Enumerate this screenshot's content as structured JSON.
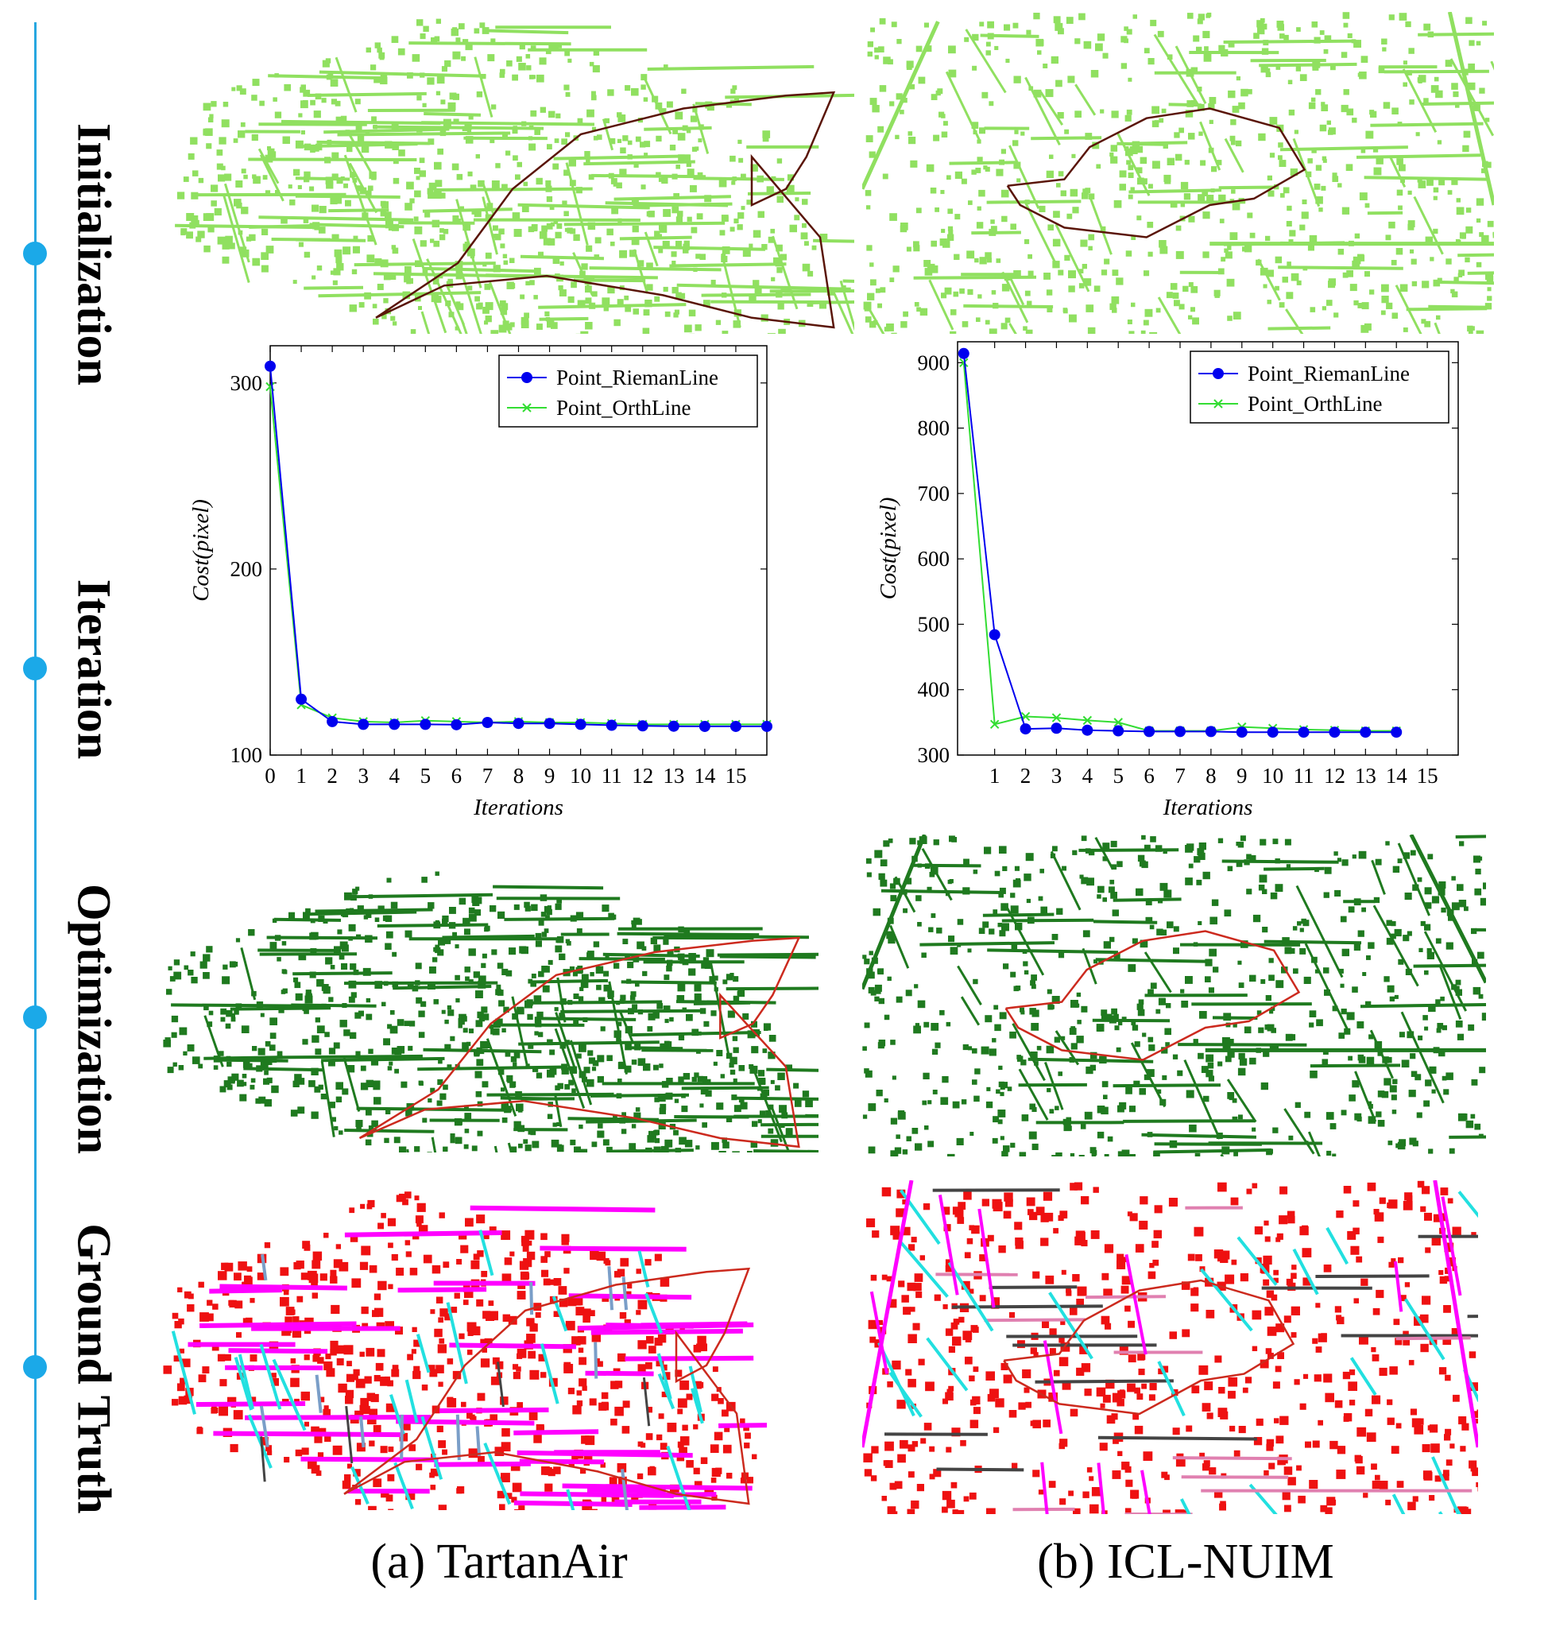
{
  "row_labels": {
    "initialization": "Initialization",
    "iteration": "Iteration",
    "optimization": "Optimization",
    "ground_truth": "Ground Truth"
  },
  "captions": {
    "a": "(a) TartanAir",
    "b": "(b) ICL-NUIM"
  },
  "colors": {
    "timeline": "#27a7e0",
    "init_map": "#90e060",
    "opt_map": "#1f7a1f",
    "gt_points": "#ee1111",
    "gt_lines_magenta": "#ff00ff",
    "gt_lines_cyan": "#22e0e0",
    "gt_lines_gray": "#444444",
    "gt_lines_steel": "#7a9ec8",
    "gt_lines_pink": "#e080b0",
    "trajectory_init": "#5a1508",
    "trajectory_opt": "#cc2a1e",
    "series_riemann": "#0000ee",
    "series_orth": "#33dd33"
  },
  "chart_data": [
    {
      "type": "line",
      "xlabel": "Iterations",
      "ylabel": "Cost(pixel)",
      "xticks": [
        0,
        1,
        2,
        3,
        4,
        5,
        6,
        7,
        8,
        9,
        10,
        11,
        12,
        13,
        14,
        15
      ],
      "yticks": [
        100,
        200,
        300
      ],
      "xlim": [
        0,
        16
      ],
      "ylim": [
        100,
        320
      ],
      "legend_position": "top-right",
      "series": [
        {
          "name": "Point_RiemanLine",
          "marker": "circle",
          "x": [
            0,
            1,
            2,
            3,
            4,
            5,
            6,
            7,
            8,
            9,
            10,
            11,
            12,
            13,
            14,
            15,
            16
          ],
          "values": [
            309,
            130,
            118,
            116.5,
            116.5,
            116.5,
            116.3,
            117.5,
            117,
            117,
            116.5,
            116,
            115.7,
            115.5,
            115.4,
            115.4,
            115.4
          ]
        },
        {
          "name": "Point_OrthLine",
          "marker": "x",
          "x": [
            0,
            1,
            2,
            3,
            4,
            5,
            6,
            7,
            8,
            9,
            10,
            11,
            12,
            13,
            14,
            15,
            16
          ],
          "values": [
            298,
            127,
            120,
            118,
            117.5,
            118.5,
            118,
            117.5,
            118,
            117.5,
            117.5,
            117,
            116.5,
            116.5,
            116.5,
            116.5,
            116.5
          ]
        }
      ]
    },
    {
      "type": "line",
      "xlabel": "Iterations",
      "ylabel": "Cost(pixel)",
      "xticks": [
        1,
        2,
        3,
        4,
        5,
        6,
        7,
        8,
        9,
        10,
        11,
        12,
        13,
        14,
        15
      ],
      "yticks": [
        300,
        400,
        500,
        600,
        700,
        800,
        900
      ],
      "xlim": [
        -0.2,
        16
      ],
      "ylim": [
        300,
        932
      ],
      "legend_position": "top-right",
      "series": [
        {
          "name": "Point_RiemanLine",
          "marker": "circle",
          "x": [
            0,
            1,
            2,
            3,
            4,
            5,
            6,
            7,
            8,
            9,
            10,
            11,
            12,
            13,
            14
          ],
          "values": [
            914,
            484,
            340,
            341,
            338,
            337,
            336,
            336,
            336,
            335,
            335,
            335,
            335,
            335,
            335
          ]
        },
        {
          "name": "Point_OrthLine",
          "marker": "x",
          "x": [
            0,
            1,
            2,
            3,
            4,
            5,
            6,
            7,
            8,
            9,
            10,
            11,
            12,
            13,
            14
          ],
          "values": [
            900,
            347,
            359,
            357,
            353,
            350,
            337,
            337,
            337,
            343,
            341,
            339,
            338,
            337,
            337
          ]
        }
      ]
    }
  ]
}
